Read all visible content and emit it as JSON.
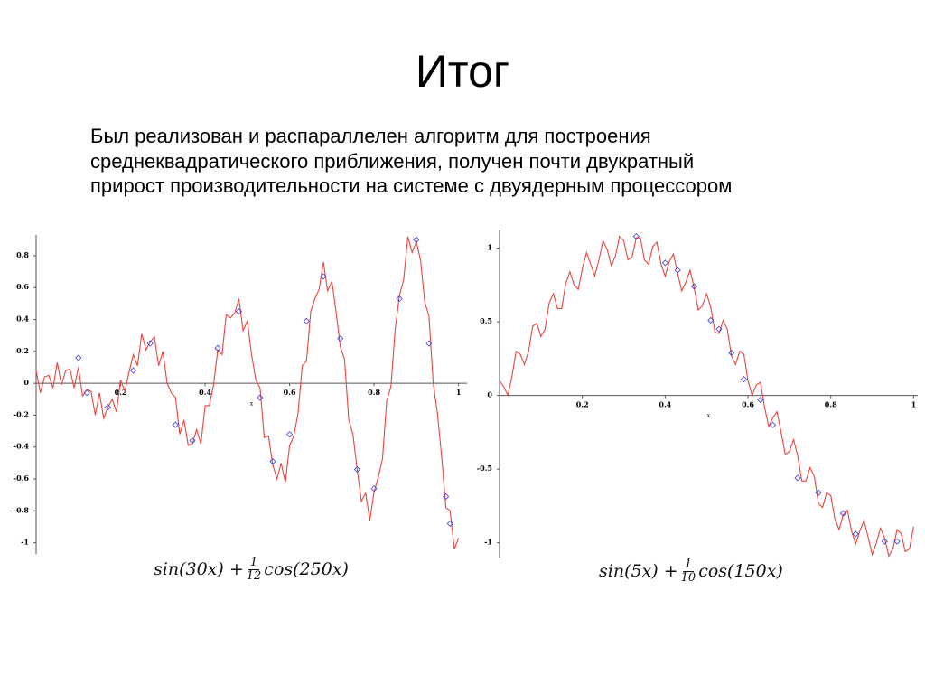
{
  "slide": {
    "title": "Итог",
    "body": [
      "Был реализован и распараллелен алгоритм для построения",
      "среднеквадратического приближения, получен почти двукратный",
      "прирост производительности на системе с двуядерным процессором"
    ]
  },
  "chart_data": [
    {
      "type": "line",
      "x_label": "x",
      "x": [
        0,
        0.01,
        0.02,
        0.03,
        0.04,
        0.05,
        0.06,
        0.07,
        0.08,
        0.09,
        0.1,
        0.11,
        0.12,
        0.13,
        0.14,
        0.15,
        0.16,
        0.17,
        0.18,
        0.19,
        0.2,
        0.21,
        0.22,
        0.23,
        0.24,
        0.25,
        0.26,
        0.27,
        0.28,
        0.29,
        0.3,
        0.31,
        0.32,
        0.33,
        0.34,
        0.35,
        0.36,
        0.37,
        0.38,
        0.39,
        0.4,
        0.41,
        0.42,
        0.43,
        0.44,
        0.45,
        0.46,
        0.47,
        0.48,
        0.49,
        0.5,
        0.51,
        0.52,
        0.53,
        0.54,
        0.55,
        0.56,
        0.57,
        0.58,
        0.59,
        0.6,
        0.61,
        0.62,
        0.63,
        0.64,
        0.65,
        0.66,
        0.67,
        0.68,
        0.69,
        0.7,
        0.71,
        0.72,
        0.73,
        0.74,
        0.75,
        0.76,
        0.77,
        0.78,
        0.79,
        0.8,
        0.81,
        0.82,
        0.83,
        0.84,
        0.85,
        0.86,
        0.87,
        0.88,
        0.89,
        0.9,
        0.91,
        0.92,
        0.93,
        0.94,
        0.95,
        0.96,
        0.97,
        0.98,
        0.99,
        1
      ],
      "series": [
        {
          "color": "#e8453c",
          "values": [
            0.08,
            -0.06,
            0.04,
            0.05,
            -0.03,
            0.13,
            -0.01,
            0.08,
            0.09,
            -0.03,
            0.1,
            -0.08,
            -0.04,
            -0.05,
            -0.2,
            -0.06,
            -0.22,
            -0.15,
            -0.1,
            -0.18,
            0.02,
            -0.05,
            0.07,
            0.18,
            0.11,
            0.31,
            0.21,
            0.26,
            0.29,
            0.11,
            0.2,
            0,
            -0.06,
            -0.09,
            -0.32,
            -0.23,
            -0.39,
            -0.38,
            -0.29,
            -0.38,
            -0.14,
            -0.14,
            -0.01,
            0.21,
            0.18,
            0.43,
            0.41,
            0.44,
            0.53,
            0.33,
            0.39,
            0.18,
            0.02,
            -0.03,
            -0.34,
            -0.33,
            -0.51,
            -0.6,
            -0.5,
            -0.62,
            -0.39,
            -0.33,
            -0.19,
            0.11,
            0.14,
            0.45,
            0.53,
            0.59,
            0.76,
            0.58,
            0.64,
            0.45,
            0.23,
            0.15,
            -0.23,
            -0.32,
            -0.54,
            -0.74,
            -0.69,
            -0.86,
            -0.68,
            -0.59,
            -0.47,
            -0.11,
            -0.02,
            0.34,
            0.55,
            0.65,
            0.92,
            0.82,
            0.89,
            0.77,
            0.51,
            0.42,
            0,
            -0.19,
            -0.46,
            -0.78,
            -0.8,
            -1.04,
            -0.97
          ]
        }
      ],
      "markers": {
        "color": "#3a3ad8",
        "x": [
          0.1,
          0.12,
          0.17,
          0.23,
          0.27,
          0.33,
          0.37,
          0.43,
          0.48,
          0.53,
          0.56,
          0.6,
          0.64,
          0.68,
          0.72,
          0.76,
          0.8,
          0.86,
          0.9,
          0.93,
          0.97,
          0.98
        ],
        "values": [
          0.16,
          -0.06,
          -0.15,
          0.08,
          0.25,
          -0.26,
          -0.36,
          0.22,
          0.45,
          -0.09,
          -0.49,
          -0.32,
          0.39,
          0.67,
          0.28,
          -0.54,
          -0.66,
          0.53,
          0.9,
          0.25,
          -0.71,
          -0.88
        ]
      },
      "xlim": [
        0,
        1.02
      ],
      "ylim": [
        -1.07,
        0.93
      ],
      "xticks": [
        0.2,
        0.4,
        0.6,
        0.8,
        1
      ],
      "yticks": [
        -1,
        -0.8,
        -0.6,
        -0.4,
        -0.2,
        0,
        0.2,
        0.4,
        0.6,
        0.8
      ],
      "formula": {
        "before": "sin(30x) +",
        "numerator": "1",
        "denominator": "12",
        "after": "cos(250x)"
      }
    },
    {
      "type": "line",
      "x_label": "x",
      "x": [
        0,
        0.01,
        0.02,
        0.03,
        0.04,
        0.05,
        0.06,
        0.07,
        0.08,
        0.09,
        0.1,
        0.11,
        0.12,
        0.13,
        0.14,
        0.15,
        0.16,
        0.17,
        0.18,
        0.19,
        0.2,
        0.21,
        0.22,
        0.23,
        0.24,
        0.25,
        0.26,
        0.27,
        0.28,
        0.29,
        0.3,
        0.31,
        0.32,
        0.33,
        0.34,
        0.35,
        0.36,
        0.37,
        0.38,
        0.39,
        0.4,
        0.41,
        0.42,
        0.43,
        0.44,
        0.45,
        0.46,
        0.47,
        0.48,
        0.49,
        0.5,
        0.51,
        0.52,
        0.53,
        0.54,
        0.55,
        0.56,
        0.57,
        0.58,
        0.59,
        0.6,
        0.61,
        0.62,
        0.63,
        0.64,
        0.65,
        0.66,
        0.67,
        0.68,
        0.69,
        0.7,
        0.71,
        0.72,
        0.73,
        0.74,
        0.75,
        0.76,
        0.77,
        0.78,
        0.79,
        0.8,
        0.81,
        0.82,
        0.83,
        0.84,
        0.85,
        0.86,
        0.87,
        0.88,
        0.89,
        0.9,
        0.91,
        0.92,
        0.93,
        0.94,
        0.95,
        0.96,
        0.97,
        0.98,
        0.99,
        1
      ],
      "series": [
        {
          "color": "#e8453c",
          "values": [
            0.1,
            0.06,
            0,
            0.13,
            0.3,
            0.28,
            0.21,
            0.3,
            0.47,
            0.49,
            0.4,
            0.45,
            0.63,
            0.69,
            0.59,
            0.59,
            0.76,
            0.84,
            0.75,
            0.72,
            0.86,
            0.97,
            0.89,
            0.81,
            0.92,
            1.05,
            0.99,
            0.88,
            0.95,
            1.08,
            1.05,
            0.92,
            0.94,
            1.07,
            1.07,
            0.92,
            0.89,
            1.01,
            1.04,
            0.89,
            0.81,
            0.91,
            0.96,
            0.83,
            0.71,
            0.77,
            0.85,
            0.73,
            0.58,
            0.61,
            0.69,
            0.6,
            0.43,
            0.42,
            0.51,
            0.45,
            0.27,
            0.21,
            0.3,
            0.28,
            0.1,
            0,
            0.07,
            0.09,
            -0.08,
            -0.21,
            -0.15,
            -0.11,
            -0.25,
            -0.4,
            -0.38,
            -0.3,
            -0.41,
            -0.58,
            -0.58,
            -0.49,
            -0.55,
            -0.73,
            -0.76,
            -0.66,
            -0.68,
            -0.84,
            -0.91,
            -0.81,
            -0.78,
            -0.92,
            -1.01,
            -0.92,
            -0.85,
            -0.96,
            -1.08,
            -1,
            -0.9,
            -0.97,
            -1.09,
            -1.04,
            -0.91,
            -0.94,
            -1.06,
            -1.04,
            -0.89
          ]
        }
      ],
      "markers": {
        "color": "#3a3ad8",
        "x": [
          0.33,
          0.4,
          0.43,
          0.47,
          0.51,
          0.53,
          0.56,
          0.59,
          0.63,
          0.66,
          0.72,
          0.77,
          0.83,
          0.86,
          0.93,
          0.96
        ],
        "values": [
          1.08,
          0.9,
          0.85,
          0.74,
          0.51,
          0.45,
          0.29,
          0.11,
          -0.03,
          -0.2,
          -0.56,
          -0.66,
          -0.8,
          -0.94,
          -0.99,
          -0.99
        ]
      },
      "xlim": [
        0,
        1.01
      ],
      "ylim": [
        -1.1,
        1.12
      ],
      "xticks": [
        0.2,
        0.4,
        0.6,
        0.8,
        1
      ],
      "yticks": [
        -1,
        -0.5,
        0,
        0.5,
        1
      ],
      "formula": {
        "before": "sin(5x) +",
        "numerator": "1",
        "denominator": "10",
        "after": "cos(150x)"
      }
    }
  ]
}
